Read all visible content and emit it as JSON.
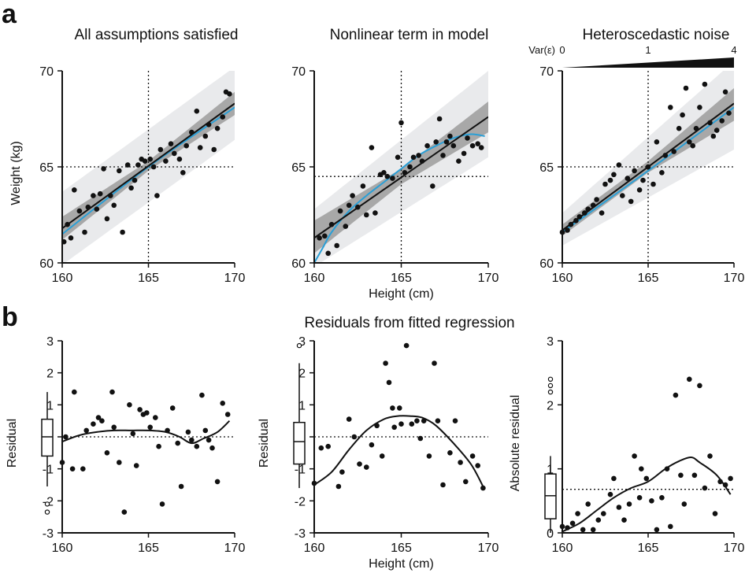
{
  "figure": {
    "panel_a_letter": "a",
    "panel_b_letter": "b",
    "panel_b_title": "Residuals from fitted regression",
    "variance_legend": {
      "label": "Var(ε)",
      "ticks": [
        "0",
        "1",
        "4"
      ]
    }
  },
  "colors": {
    "fit_line": "#111111",
    "true_curve": "#2a9fd6",
    "inner_band": "#a8a8a8",
    "outer_band": "#e9eaec",
    "points": "#111111"
  },
  "chart_data": [
    {
      "id": "a1",
      "type": "scatter",
      "title": "All assumptions satisfied",
      "xlabel": "",
      "ylabel": "Weight (kg)",
      "xlim": [
        160,
        170
      ],
      "ylim": [
        60,
        70
      ],
      "xticks": [
        "160",
        "165",
        "170"
      ],
      "yticks": [
        "60",
        "65",
        "70"
      ],
      "ref_x": 165,
      "ref_y": 65,
      "fit_line": {
        "x": [
          160,
          170
        ],
        "y": [
          61.8,
          68.3
        ]
      },
      "inner_band": {
        "x": [
          160,
          165,
          170
        ],
        "lower": [
          61.2,
          64.8,
          67.7
        ],
        "upper": [
          62.4,
          65.3,
          68.9
        ]
      },
      "outer_band": {
        "x": [
          160,
          170
        ],
        "lower": [
          59.9,
          66.4
        ],
        "upper": [
          63.7,
          70.2
        ]
      },
      "true_curve": {
        "x": [
          160,
          165,
          170
        ],
        "y": [
          61.5,
          65.0,
          68.1
        ]
      },
      "x": [
        160.1,
        160.3,
        160.5,
        160.7,
        161.0,
        161.3,
        161.5,
        161.8,
        162.0,
        162.2,
        162.4,
        162.6,
        162.8,
        163.0,
        163.3,
        163.5,
        163.8,
        164.0,
        164.2,
        164.4,
        164.6,
        164.8,
        165.1,
        165.3,
        165.5,
        165.7,
        166.0,
        166.3,
        166.5,
        166.8,
        167.0,
        167.2,
        167.5,
        167.8,
        168.0,
        168.3,
        168.5,
        168.8,
        169.0,
        169.3,
        169.5,
        169.7
      ],
      "y": [
        61.1,
        62.0,
        61.3,
        63.8,
        62.7,
        61.6,
        62.9,
        63.5,
        62.8,
        63.6,
        64.9,
        62.3,
        63.5,
        63.0,
        64.8,
        61.6,
        65.1,
        63.9,
        64.3,
        65.1,
        65.4,
        65.3,
        65.4,
        65.0,
        63.5,
        65.9,
        65.3,
        66.2,
        65.7,
        65.4,
        64.7,
        66.1,
        66.8,
        67.9,
        66.0,
        66.6,
        67.2,
        65.9,
        67.0,
        67.6,
        68.9,
        68.8
      ]
    },
    {
      "id": "a2",
      "type": "scatter",
      "title": "Nonlinear term in model",
      "xlabel": "Height (cm)",
      "ylabel": "",
      "xlim": [
        160,
        170
      ],
      "ylim": [
        60,
        70
      ],
      "xticks": [
        "160",
        "165",
        "170"
      ],
      "yticks": [
        "60",
        "65",
        "70"
      ],
      "ref_x": 165,
      "ref_y": 64.5,
      "fit_line": {
        "x": [
          160,
          170
        ],
        "y": [
          61.3,
          67.6
        ]
      },
      "inner_band": {
        "x": [
          160,
          165,
          170
        ],
        "lower": [
          60.5,
          64.1,
          66.8
        ],
        "upper": [
          62.2,
          64.9,
          68.4
        ]
      },
      "outer_band": {
        "x": [
          160,
          170
        ],
        "lower": [
          59.8,
          65.5
        ],
        "upper": [
          62.8,
          70.0
        ]
      },
      "true_curve": {
        "x": [
          160,
          160.5,
          161,
          162,
          163,
          164,
          165,
          166,
          167,
          168,
          169,
          169.8
        ],
        "y": [
          60.0,
          60.8,
          61.6,
          62.7,
          63.5,
          64.2,
          64.9,
          65.6,
          66.1,
          66.5,
          66.7,
          66.6
        ]
      },
      "x": [
        160.3,
        160.6,
        160.8,
        161.0,
        161.3,
        161.5,
        161.8,
        162.0,
        162.2,
        162.5,
        162.8,
        163.0,
        163.3,
        163.5,
        163.8,
        164.0,
        164.2,
        164.5,
        164.8,
        165.0,
        165.2,
        165.5,
        165.7,
        166.0,
        166.2,
        166.5,
        166.8,
        167.0,
        167.2,
        167.4,
        167.6,
        167.8,
        168.0,
        168.3,
        168.6,
        168.8,
        169.1,
        169.4,
        169.6
      ],
      "y": [
        61.3,
        61.4,
        60.5,
        62.0,
        60.9,
        62.7,
        61.9,
        63.0,
        63.5,
        62.9,
        64.0,
        62.5,
        66.0,
        62.6,
        64.6,
        64.7,
        64.5,
        64.4,
        65.5,
        67.3,
        64.7,
        65.0,
        65.5,
        65.6,
        65.3,
        66.1,
        64.0,
        66.3,
        67.5,
        65.6,
        66.3,
        66.6,
        66.1,
        65.3,
        65.7,
        66.5,
        66.1,
        66.2,
        66.0
      ]
    },
    {
      "id": "a3",
      "type": "scatter",
      "title": "Heteroscedastic noise",
      "xlabel": "",
      "ylabel": "",
      "xlim": [
        160,
        170
      ],
      "ylim": [
        60,
        70
      ],
      "xticks": [
        "160",
        "165",
        "170"
      ],
      "yticks": [
        "60",
        "65",
        "70"
      ],
      "ref_x": 165,
      "ref_y": 65,
      "fit_line": {
        "x": [
          160,
          170
        ],
        "y": [
          61.7,
          68.3
        ]
      },
      "inner_band": {
        "x": [
          160,
          165,
          170
        ],
        "lower": [
          61.4,
          64.7,
          67.4
        ],
        "upper": [
          62.0,
          65.3,
          69.1
        ]
      },
      "outer_band": {
        "x": [
          160,
          170
        ],
        "lower": [
          60.9,
          65.9
        ],
        "upper": [
          62.6,
          70.5
        ]
      },
      "true_curve": {
        "x": [
          160,
          165,
          170
        ],
        "y": [
          61.6,
          64.8,
          68.1
        ]
      },
      "x": [
        160.0,
        160.3,
        160.5,
        160.8,
        161.0,
        161.3,
        161.5,
        161.8,
        162.0,
        162.3,
        162.5,
        162.8,
        163.0,
        163.3,
        163.5,
        163.8,
        164.0,
        164.2,
        164.5,
        164.7,
        165.0,
        165.3,
        165.5,
        165.8,
        166.0,
        166.3,
        166.5,
        166.8,
        167.0,
        167.2,
        167.4,
        167.6,
        167.8,
        168.0,
        168.3,
        168.6,
        168.8,
        169.0,
        169.3,
        169.5,
        169.7
      ],
      "y": [
        61.6,
        61.7,
        62.0,
        62.2,
        62.4,
        62.6,
        62.8,
        63.0,
        63.3,
        62.6,
        64.1,
        64.3,
        64.6,
        65.1,
        63.5,
        64.4,
        63.2,
        64.8,
        63.8,
        64.3,
        65.0,
        64.1,
        66.3,
        64.7,
        65.6,
        68.1,
        65.8,
        67.0,
        67.7,
        69.1,
        66.3,
        66.1,
        67.0,
        68.1,
        69.3,
        67.3,
        66.6,
        66.9,
        67.4,
        68.9,
        67.8
      ]
    },
    {
      "id": "b1",
      "type": "scatter",
      "title": "",
      "xlabel": "",
      "ylabel": "Residual",
      "xlim": [
        160,
        170
      ],
      "ylim": [
        -3,
        3
      ],
      "xticks": [
        "160",
        "165",
        "170"
      ],
      "yticks": [
        "-3",
        "-2",
        "-1",
        "0",
        "1",
        "2",
        "3"
      ],
      "ref_y": 0,
      "boxplot": {
        "q1": -0.6,
        "median": 0.0,
        "q3": 0.55,
        "whisker_low": -1.55,
        "whisker_high": 1.4,
        "outliers": [
          -2.1,
          -2.35
        ]
      },
      "smooth": {
        "x": [
          160.0,
          161.0,
          162.0,
          163.0,
          164.0,
          165.0,
          166.0,
          166.8,
          167.5,
          168.2,
          169.0,
          169.7
        ],
        "y": [
          -0.15,
          0.05,
          0.15,
          0.2,
          0.2,
          0.2,
          0.15,
          0.0,
          -0.2,
          -0.05,
          0.15,
          0.5
        ]
      },
      "x": [
        160.0,
        160.2,
        160.6,
        160.7,
        161.2,
        161.4,
        161.8,
        162.1,
        162.3,
        162.6,
        162.9,
        163.0,
        163.3,
        163.6,
        163.9,
        164.1,
        164.3,
        164.5,
        164.7,
        164.9,
        165.1,
        165.4,
        165.6,
        165.8,
        166.1,
        166.4,
        166.7,
        166.9,
        167.3,
        167.5,
        167.8,
        168.1,
        168.3,
        168.5,
        168.7,
        169.0,
        169.3,
        169.6
      ],
      "y": [
        -0.8,
        0.0,
        -1.0,
        1.4,
        -1.0,
        0.2,
        0.4,
        0.6,
        0.5,
        -0.5,
        1.4,
        0.3,
        -0.8,
        -2.35,
        1.0,
        0.1,
        -0.9,
        0.85,
        0.7,
        0.75,
        0.3,
        0.6,
        -0.3,
        -2.1,
        0.2,
        0.9,
        -0.2,
        -1.55,
        0.15,
        -0.1,
        -0.3,
        1.3,
        0.2,
        -0.1,
        -0.35,
        -1.4,
        1.05,
        0.7
      ]
    },
    {
      "id": "b2",
      "type": "scatter",
      "title": "",
      "xlabel": "Height (cm)",
      "ylabel": "Residual",
      "xlim": [
        160,
        170
      ],
      "ylim": [
        -3,
        3
      ],
      "xticks": [
        "160",
        "165",
        "170"
      ],
      "yticks": [
        "-3",
        "-2",
        "-1",
        "0",
        "1",
        "2",
        "3"
      ],
      "ref_y": 0,
      "boxplot": {
        "q1": -0.85,
        "median": -0.15,
        "q3": 0.45,
        "whisker_low": -1.6,
        "whisker_high": 2.3,
        "outliers": [
          2.85
        ]
      },
      "smooth": {
        "x": [
          160.0,
          161.0,
          162.0,
          163.0,
          164.0,
          164.8,
          165.5,
          166.2,
          167.0,
          168.0,
          169.0,
          169.7
        ],
        "y": [
          -1.5,
          -1.1,
          -0.4,
          0.2,
          0.55,
          0.65,
          0.65,
          0.6,
          0.35,
          -0.2,
          -0.85,
          -1.55
        ]
      },
      "x": [
        160.0,
        160.4,
        160.8,
        161.4,
        161.6,
        162.0,
        162.3,
        162.6,
        163.0,
        163.3,
        163.6,
        163.9,
        164.1,
        164.3,
        164.5,
        164.6,
        164.9,
        165.0,
        165.3,
        165.6,
        165.9,
        166.1,
        166.3,
        166.6,
        166.9,
        167.1,
        167.4,
        167.8,
        168.1,
        168.4,
        168.7,
        169.1,
        169.4,
        169.7
      ],
      "y": [
        -1.45,
        -0.35,
        -0.3,
        -1.55,
        -1.1,
        0.55,
        0.0,
        -0.85,
        -0.95,
        -0.25,
        0.35,
        -0.6,
        2.3,
        1.7,
        0.9,
        0.3,
        0.9,
        0.4,
        2.85,
        0.4,
        0.5,
        -0.05,
        0.5,
        -0.6,
        2.3,
        0.5,
        -1.5,
        -0.5,
        0.5,
        -0.8,
        -1.4,
        -0.6,
        -0.9,
        -1.6
      ]
    },
    {
      "id": "b3",
      "type": "scatter",
      "title": "",
      "xlabel": "",
      "ylabel": "Absolute residual",
      "xlim": [
        160,
        170
      ],
      "ylim": [
        0,
        3
      ],
      "xticks": [
        "160",
        "165",
        "170"
      ],
      "yticks": [
        "0",
        "1",
        "2",
        "3"
      ],
      "ref_y": 0.68,
      "boxplot": {
        "q1": 0.22,
        "median": 0.58,
        "q3": 0.92,
        "whisker_low": 0.0,
        "whisker_high": 1.2,
        "outliers": [
          2.2,
          2.3,
          2.4
        ]
      },
      "smooth": {
        "x": [
          160.0,
          161.0,
          162.0,
          163.0,
          164.0,
          165.0,
          166.0,
          166.8,
          167.5,
          168.0,
          169.0,
          169.8
        ],
        "y": [
          0.02,
          0.15,
          0.35,
          0.55,
          0.7,
          0.8,
          1.0,
          1.12,
          1.18,
          1.1,
          0.9,
          0.6
        ]
      },
      "x": [
        160.0,
        160.3,
        160.6,
        160.9,
        161.2,
        161.5,
        161.8,
        162.1,
        162.4,
        162.8,
        163.0,
        163.3,
        163.6,
        163.9,
        164.2,
        164.5,
        164.6,
        164.9,
        165.2,
        165.5,
        165.8,
        166.1,
        166.3,
        166.6,
        166.9,
        167.1,
        167.4,
        167.7,
        168.0,
        168.3,
        168.6,
        168.9,
        169.2,
        169.5,
        169.8
      ],
      "y": [
        0.1,
        0.08,
        0.15,
        0.3,
        0.05,
        0.45,
        0.05,
        0.2,
        0.3,
        0.6,
        0.85,
        0.4,
        0.2,
        0.45,
        1.2,
        0.55,
        1.0,
        0.85,
        0.5,
        0.05,
        0.55,
        1.0,
        0.1,
        2.15,
        0.9,
        0.45,
        2.4,
        0.9,
        2.3,
        0.7,
        1.2,
        0.3,
        0.8,
        0.75,
        0.85
      ]
    }
  ]
}
